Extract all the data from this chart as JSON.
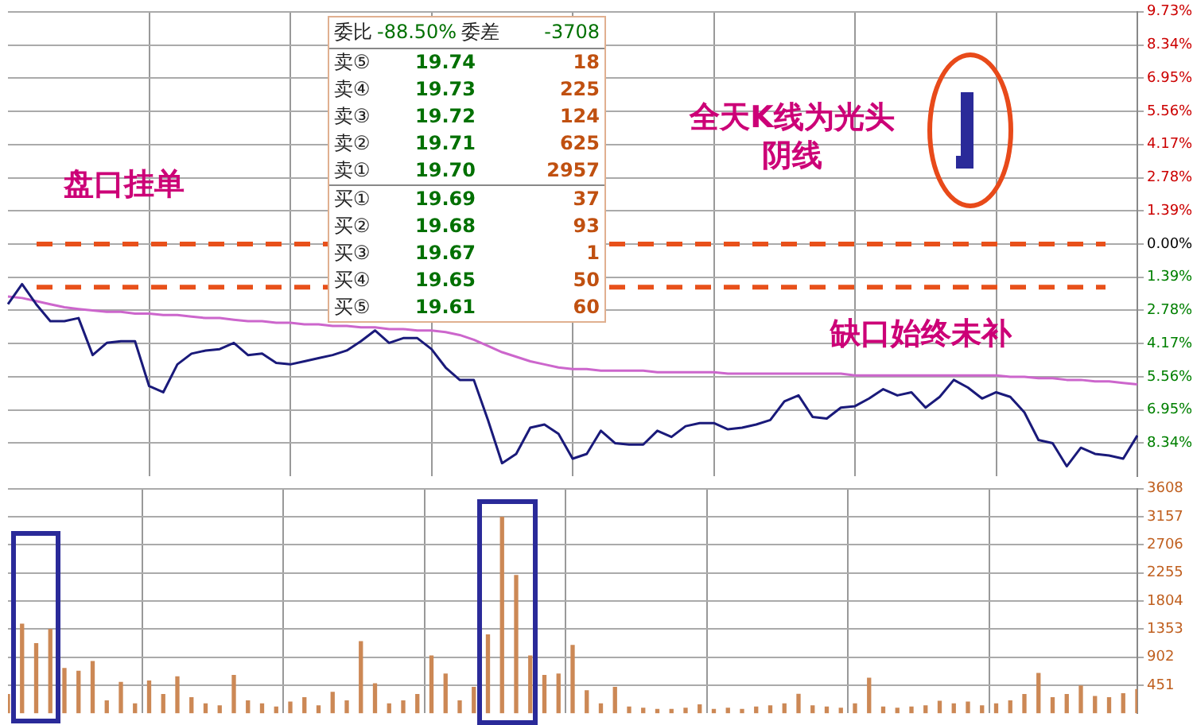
{
  "chart_data": [
    {
      "type": "line",
      "categories": [
        null,
        null,
        null,
        null,
        null,
        null,
        null,
        null,
        null,
        null,
        null,
        null,
        null,
        null,
        null,
        null,
        null,
        null,
        null,
        null,
        null,
        null,
        null,
        null,
        null,
        null,
        null,
        null,
        null,
        null,
        null,
        null,
        null,
        null,
        null,
        null,
        null,
        null,
        null,
        null,
        null,
        null,
        null,
        null,
        null,
        null,
        null,
        null,
        null,
        null,
        null,
        null,
        null,
        null,
        null,
        null,
        null,
        null,
        null,
        null,
        null,
        null,
        null,
        null,
        null,
        null,
        null,
        null,
        null,
        null,
        null,
        null,
        null,
        null,
        null,
        null,
        null,
        null,
        null,
        null,
        null
      ],
      "series": [
        {
          "color": "#1a1a7a",
          "values": [
            -2.52,
            -1.68,
            -2.52,
            -3.23,
            -3.23,
            -3.1,
            -4.65,
            -4.14,
            -4.07,
            -4.07,
            -5.95,
            -6.21,
            -5.04,
            -4.59,
            -4.46,
            -4.4,
            -4.14,
            -4.65,
            -4.59,
            -4.98,
            -5.04,
            -4.91,
            -4.78,
            -4.65,
            -4.46,
            -4.07,
            -3.62,
            -4.14,
            -3.94,
            -3.94,
            -4.4,
            -5.17,
            -5.69,
            -5.69,
            -7.37,
            -9.18,
            -8.79,
            -7.69,
            -7.56,
            -7.95,
            -8.99,
            -8.79,
            -7.82,
            -8.34,
            -8.4,
            -8.4,
            -7.82,
            -8.08,
            -7.63,
            -7.5,
            -7.5,
            -7.76,
            -7.69,
            -7.56,
            -7.37,
            -6.59,
            -6.34,
            -7.24,
            -7.31,
            -6.85,
            -6.79,
            -6.47,
            -6.08,
            -6.34,
            -6.21,
            -6.85,
            -6.4,
            -5.69,
            -6.01,
            -6.47,
            -6.21,
            -6.4,
            -7.05,
            -8.21,
            -8.34,
            -9.31,
            -8.53,
            -8.79,
            -8.86,
            -8.99,
            -8.02
          ]
        },
        {
          "color": "#cc66cc",
          "values": [
            -2.2,
            -2.26,
            -2.39,
            -2.52,
            -2.65,
            -2.72,
            -2.78,
            -2.84,
            -2.84,
            -2.91,
            -2.91,
            -2.97,
            -2.97,
            -3.04,
            -3.1,
            -3.1,
            -3.17,
            -3.23,
            -3.23,
            -3.3,
            -3.3,
            -3.36,
            -3.36,
            -3.43,
            -3.43,
            -3.49,
            -3.49,
            -3.56,
            -3.56,
            -3.62,
            -3.62,
            -3.69,
            -3.81,
            -4.01,
            -4.27,
            -4.53,
            -4.72,
            -4.91,
            -5.04,
            -5.17,
            -5.24,
            -5.24,
            -5.3,
            -5.3,
            -5.3,
            -5.3,
            -5.37,
            -5.37,
            -5.37,
            -5.37,
            -5.37,
            -5.43,
            -5.43,
            -5.43,
            -5.43,
            -5.43,
            -5.43,
            -5.43,
            -5.43,
            -5.43,
            -5.5,
            -5.5,
            -5.5,
            -5.5,
            -5.5,
            -5.5,
            -5.5,
            -5.5,
            -5.5,
            -5.5,
            -5.5,
            -5.56,
            -5.56,
            -5.62,
            -5.62,
            -5.69,
            -5.69,
            -5.75,
            -5.75,
            -5.82,
            -5.88
          ]
        }
      ],
      "ylim": [
        -9.73,
        9.73
      ],
      "yticks": [
        {
          "value": 9.73,
          "label": "9.73%"
        },
        {
          "value": 8.34,
          "label": "8.34%"
        },
        {
          "value": 6.95,
          "label": "6.95%"
        },
        {
          "value": 5.56,
          "label": "5.56%"
        },
        {
          "value": 4.17,
          "label": "4.17%"
        },
        {
          "value": 2.78,
          "label": "2.78%"
        },
        {
          "value": 1.39,
          "label": "1.39%"
        },
        {
          "value": 0,
          "label": "0.00%"
        },
        {
          "value": -1.39,
          "label": "1.39%"
        },
        {
          "value": -2.78,
          "label": "2.78%"
        },
        {
          "value": -4.17,
          "label": "4.17%"
        },
        {
          "value": -5.56,
          "label": "5.56%"
        },
        {
          "value": -6.95,
          "label": "6.95%"
        },
        {
          "value": -8.34,
          "label": "8.34%"
        }
      ],
      "ref_lines": [
        {
          "axis": "y",
          "value": 0,
          "color": "#e8501a",
          "line_style": "dashed"
        },
        {
          "axis": "y",
          "value": -1.81,
          "color": "#e8501a",
          "line_style": "dashed"
        }
      ],
      "annotations": [
        "盘口挂单",
        "全天K线为光头阴线",
        "缺口始终未补",
        "委比 -88.50% 委差 -3708",
        "卖⑤ 19.74 18",
        "卖④ 19.73 225",
        "卖③ 19.72 124",
        "卖② 19.71 625",
        "卖① 19.70 2957",
        "买① 19.69 37",
        "买② 19.68 93",
        "买③ 19.67 1",
        "买④ 19.65 50",
        "买⑤ 19.61 60"
      ],
      "grid": true,
      "marker": "none",
      "tick_labels": "y"
    },
    {
      "type": "bar",
      "categories": [
        null,
        null,
        null,
        null,
        null,
        null,
        null,
        null,
        null,
        null,
        null,
        null,
        null,
        null,
        null,
        null,
        null,
        null,
        null,
        null,
        null,
        null,
        null,
        null,
        null,
        null,
        null,
        null,
        null,
        null,
        null,
        null,
        null,
        null,
        null,
        null,
        null,
        null,
        null,
        null,
        null,
        null,
        null,
        null,
        null,
        null,
        null,
        null,
        null,
        null,
        null,
        null,
        null,
        null,
        null,
        null,
        null,
        null,
        null,
        null,
        null,
        null,
        null,
        null,
        null,
        null,
        null,
        null,
        null,
        null,
        null,
        null,
        null,
        null,
        null,
        null,
        null,
        null,
        null,
        null,
        null
      ],
      "values": [
        300,
        1430,
        1120,
        1350,
        720,
        675,
        830,
        200,
        495,
        150,
        517,
        300,
        584,
        250,
        150,
        120,
        607,
        200,
        150,
        100,
        180,
        250,
        120,
        337,
        200,
        1150,
        472,
        150,
        200,
        300,
        920,
        630,
        200,
        416,
        1260,
        3150,
        2215,
        920,
        607,
        630,
        1090,
        360,
        150,
        416,
        100,
        80,
        60,
        60,
        80,
        135,
        60,
        80,
        60,
        100,
        120,
        150,
        303,
        120,
        100,
        80,
        150,
        562,
        100,
        80,
        100,
        120,
        191,
        150,
        180,
        120,
        150,
        200,
        300,
        640,
        250,
        300,
        438,
        270,
        250,
        315,
        382
      ],
      "color": "#cc8855",
      "ylim": [
        0,
        3608
      ],
      "yticks": [
        451,
        902,
        1353,
        1804,
        2255,
        2706,
        3157,
        3608
      ],
      "grid": true,
      "tick_labels": "y"
    }
  ]
}
